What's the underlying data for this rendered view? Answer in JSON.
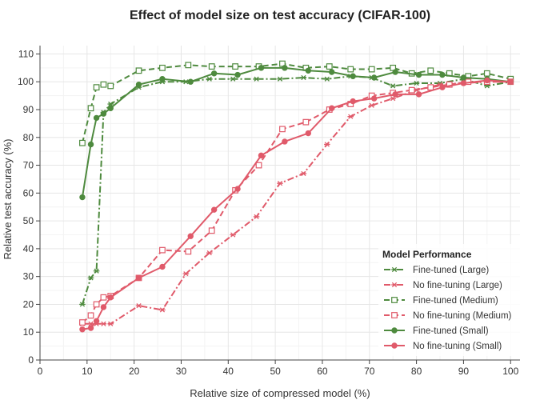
{
  "chart_data": {
    "type": "line",
    "title": "Effect of model size on test accuracy (CIFAR-100)",
    "xlabel": "Relative size of compressed model (%)",
    "ylabel": "Relative test accuracy (%)",
    "xlim": [
      0,
      102
    ],
    "ylim": [
      0,
      113
    ],
    "xticks": [
      0,
      10,
      20,
      30,
      40,
      50,
      60,
      70,
      80,
      90,
      100
    ],
    "yticks": [
      0,
      10,
      20,
      30,
      40,
      50,
      60,
      70,
      80,
      90,
      100,
      110
    ],
    "grid": true,
    "legend": {
      "title": "Model Performance",
      "placement": "bottom-right"
    },
    "series": [
      {
        "name": "Fine-tuned (Large)",
        "color": "#4e8a3e",
        "dash": "dashdot",
        "marker": "asterisk",
        "x": [
          9,
          10.8,
          12,
          13.5,
          15,
          21,
          26,
          31,
          36,
          41,
          46,
          51,
          56,
          61,
          66,
          70.5,
          75,
          80,
          85,
          90,
          95,
          100
        ],
        "y": [
          20,
          29.5,
          32,
          89,
          92,
          98,
          100,
          100,
          101,
          101,
          101,
          101,
          101.5,
          101,
          102,
          101.5,
          98.5,
          99.5,
          99.5,
          101,
          98.5,
          100
        ]
      },
      {
        "name": "No fine-tuning (Large)",
        "color": "#e05a6a",
        "dash": "dashdot",
        "marker": "asterisk",
        "x": [
          9,
          10.8,
          12,
          13.5,
          15,
          21,
          26,
          31,
          36,
          41,
          46,
          51,
          56,
          61,
          66,
          70.5,
          75,
          80,
          85,
          90,
          95,
          100
        ],
        "y": [
          13,
          13,
          13,
          13,
          13,
          19.5,
          18,
          31,
          38.5,
          45,
          51.5,
          63.5,
          67,
          77.5,
          87.5,
          91.5,
          94,
          97,
          99,
          99.5,
          100,
          100
        ]
      },
      {
        "name": "Fine-tuned (Medium)",
        "color": "#4e8a3e",
        "dash": "dashed",
        "marker": "open-square",
        "x": [
          9,
          10.8,
          12,
          13.5,
          15,
          21,
          26,
          31.5,
          36.5,
          41.5,
          46.5,
          51.5,
          56.5,
          61.5,
          66,
          70.5,
          75,
          79,
          83,
          87,
          91,
          95,
          100
        ],
        "y": [
          78,
          90.5,
          98,
          99,
          98.5,
          104,
          105,
          106,
          105.5,
          105.5,
          105.5,
          106.5,
          105,
          105.5,
          104.5,
          104.5,
          105,
          103,
          104,
          103,
          102,
          103,
          101
        ]
      },
      {
        "name": "No fine-tuning (Medium)",
        "color": "#e05a6a",
        "dash": "dashed",
        "marker": "open-square",
        "x": [
          9,
          10.8,
          12,
          13.5,
          15,
          21,
          26,
          31.5,
          36.5,
          41.5,
          46.5,
          51.5,
          56.5,
          61.5,
          66,
          70.5,
          75,
          79,
          83,
          87,
          91,
          95,
          100
        ],
        "y": [
          13.5,
          16,
          20,
          22.5,
          23,
          29.5,
          39.5,
          39,
          46.5,
          61,
          70,
          83,
          85.5,
          90,
          92,
          95,
          96,
          97,
          98,
          99,
          100,
          100,
          100
        ]
      },
      {
        "name": "Fine-tuned (Small)",
        "color": "#4e8a3e",
        "dash": "solid",
        "marker": "filled-circle",
        "x": [
          9,
          10.8,
          12,
          13.5,
          15,
          21,
          26,
          32,
          37,
          42,
          47,
          52,
          57,
          62,
          66.5,
          71,
          75.5,
          80.5,
          85.5,
          90,
          95,
          100
        ],
        "y": [
          58.5,
          77.5,
          87,
          88.5,
          90.5,
          99,
          101,
          100,
          103,
          102.5,
          105,
          105,
          104,
          103.5,
          102,
          101.5,
          103.5,
          102.5,
          102.5,
          101.5,
          101,
          100
        ]
      },
      {
        "name": "No fine-tuning (Small)",
        "color": "#e05a6a",
        "dash": "solid",
        "marker": "filled-circle",
        "x": [
          9,
          10.8,
          12,
          13.5,
          15,
          21,
          26,
          32,
          37,
          42,
          47,
          52,
          57,
          62,
          66.5,
          71,
          75.5,
          80.5,
          85.5,
          90,
          95,
          100
        ],
        "y": [
          11,
          11.5,
          14,
          19,
          22.5,
          29.5,
          33.5,
          44.5,
          54,
          61.5,
          73.5,
          78.5,
          81.5,
          90.5,
          93,
          94,
          95.5,
          95.5,
          98,
          99.5,
          100.5,
          100
        ]
      }
    ]
  }
}
